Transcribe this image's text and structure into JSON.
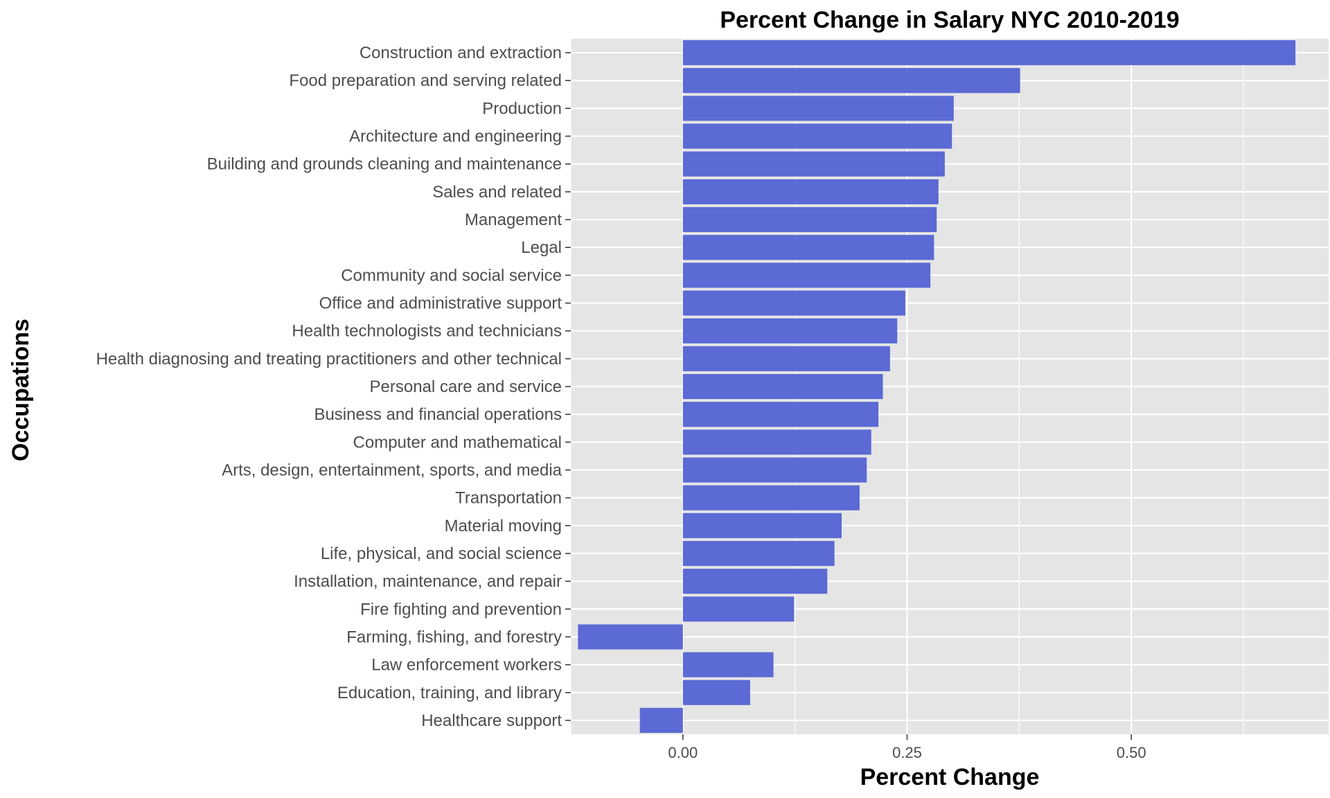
{
  "chart_data": {
    "type": "bar",
    "orientation": "horizontal",
    "title": "Percent Change in Salary NYC 2010-2019",
    "xlabel": "Percent Change",
    "ylabel": "Occupations",
    "xlim": [
      -0.125,
      0.72
    ],
    "xticks": [
      0.0,
      0.25,
      0.5
    ],
    "xtick_labels": [
      "0.00",
      "0.25",
      "0.50"
    ],
    "grid": true,
    "bar_color": "#5b6ad4",
    "panel_color": "#e5e5e5",
    "grid_color": "#ffffff",
    "categories": [
      "Construction and extraction",
      "Food preparation and serving related",
      "Production",
      "Architecture and engineering",
      "Building and grounds cleaning and maintenance",
      "Sales and related",
      "Management",
      "Legal",
      "Community and social service",
      "Office and administrative support",
      "Health technologists and technicians",
      "Health diagnosing and treating practitioners and other technical",
      "Personal care and service",
      "Business and financial operations",
      "Computer and mathematical",
      "Arts, design, entertainment, sports, and media",
      "Transportation",
      "Material moving",
      "Life, physical, and social science",
      "Installation, maintenance, and repair",
      "Fire fighting and prevention",
      "Farming, fishing, and forestry",
      "Law enforcement workers",
      "Education, training, and library",
      "Healthcare support"
    ],
    "values": [
      0.683,
      0.376,
      0.302,
      0.3,
      0.292,
      0.285,
      0.283,
      0.28,
      0.276,
      0.248,
      0.239,
      0.231,
      0.223,
      0.218,
      0.21,
      0.205,
      0.197,
      0.177,
      0.169,
      0.161,
      0.124,
      -0.117,
      0.101,
      0.075,
      -0.048
    ]
  }
}
